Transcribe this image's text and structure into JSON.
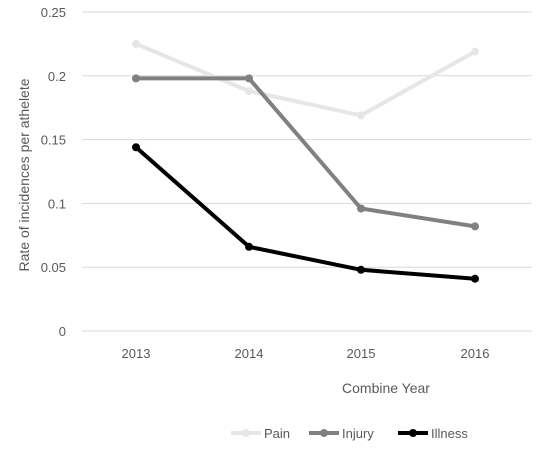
{
  "chart_data": {
    "type": "line",
    "title": "",
    "xlabel": "Combine Year",
    "ylabel": "Rate of incidences per athelete",
    "categories": [
      "2013",
      "2014",
      "2015",
      "2016"
    ],
    "ylim": [
      0,
      0.25
    ],
    "yticks": [
      "0",
      "0.05",
      "0.1",
      "0.15",
      "0.2",
      "0.25"
    ],
    "grid": "horizontal",
    "legend_position": "bottom",
    "series": [
      {
        "name": "Pain",
        "values": [
          0.225,
          0.188,
          0.169,
          0.219
        ],
        "color": "#e6e6e6"
      },
      {
        "name": "Injury",
        "values": [
          0.198,
          0.198,
          0.096,
          0.082
        ],
        "color": "#808080"
      },
      {
        "name": "Illness",
        "values": [
          0.144,
          0.066,
          0.048,
          0.041
        ],
        "color": "#000000"
      }
    ]
  }
}
